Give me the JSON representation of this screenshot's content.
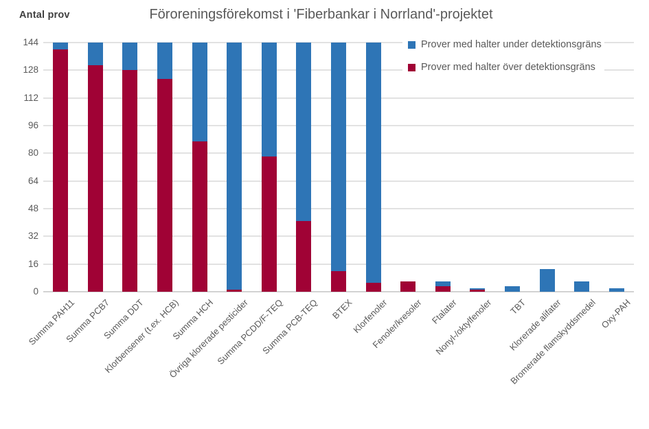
{
  "title": "Föroreningsförekomst i 'Fiberbankar i Norrland'-projektet",
  "y_axis_title": "Antal prov",
  "colors": {
    "under": "#2E75B6",
    "over": "#A00235",
    "gridline": "#E2E2E2",
    "axis_text": "#595959",
    "title_text": "#595959"
  },
  "chart_data": {
    "type": "bar",
    "stacked": true,
    "grid": true,
    "legend_position": "top-right",
    "title": "Föroreningsförekomst i 'Fiberbankar i Norrland'-projektet",
    "ylabel": "Antal prov",
    "xlabel": "",
    "ylim": [
      0,
      144
    ],
    "ytick_step": 16,
    "categories": [
      "Summa PAH11",
      "Summa PCB7",
      "Summa DDT",
      "Klorbensener (t.ex. HCB)",
      "Summa HCH",
      "Övriga klorerade pesticider",
      "Summa PCDD/F-TEQ",
      "Summa PCB-TEQ",
      "BTEX",
      "Klorfenoler",
      "Fenoler/kresoler",
      "Ftalater",
      "Nonyl-/oktylfenoler",
      "TBT",
      "Klorerade alifater",
      "Bromerade flamskyddsmedel",
      "Oxy-PAH"
    ],
    "series": [
      {
        "name": "Prover med halter under detektionsgräns",
        "color": "#2E75B6",
        "stack_order": "top",
        "values": [
          4,
          13,
          16,
          21,
          57,
          143,
          66,
          103,
          132,
          139,
          0,
          3,
          1,
          3,
          13,
          6,
          2
        ]
      },
      {
        "name": "Prover med halter över detektionsgräns",
        "color": "#A00235",
        "stack_order": "bottom",
        "values": [
          140,
          131,
          128,
          123,
          87,
          1,
          78,
          41,
          12,
          5,
          6,
          3,
          1,
          0,
          0,
          0,
          0
        ]
      }
    ]
  }
}
